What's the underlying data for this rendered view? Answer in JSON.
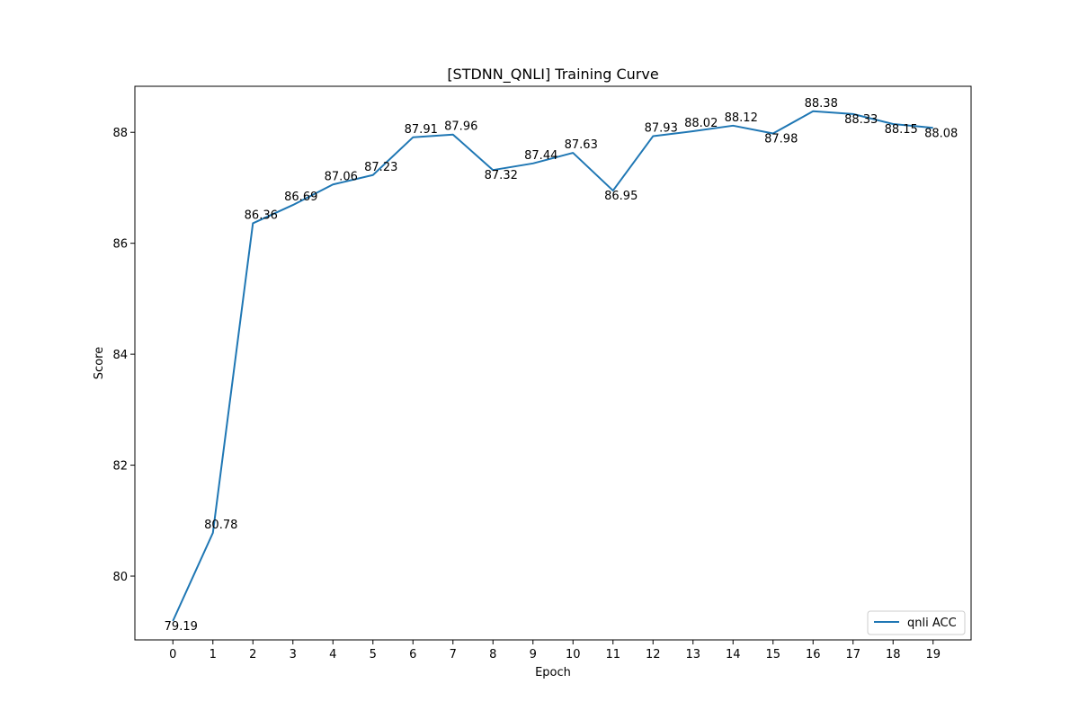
{
  "chart_data": {
    "type": "line",
    "title": "[STDNN_QNLI] Training Curve",
    "xlabel": "Epoch",
    "ylabel": "Score",
    "x": [
      0,
      1,
      2,
      3,
      4,
      5,
      6,
      7,
      8,
      9,
      10,
      11,
      12,
      13,
      14,
      15,
      16,
      17,
      18,
      19
    ],
    "x_ticks": [
      "0",
      "1",
      "2",
      "3",
      "4",
      "5",
      "6",
      "7",
      "8",
      "9",
      "10",
      "11",
      "12",
      "13",
      "14",
      "15",
      "16",
      "17",
      "18",
      "19"
    ],
    "y_ticks": [
      "80",
      "82",
      "84",
      "86",
      "88"
    ],
    "y_tick_values": [
      80,
      82,
      84,
      86,
      88
    ],
    "xlim": [
      -0.95,
      19.95
    ],
    "ylim": [
      78.85,
      88.83
    ],
    "grid": false,
    "legend_position": "lower-right",
    "series": [
      {
        "name": "qnli ACC",
        "color": "#1f77b4",
        "values": [
          79.19,
          80.78,
          86.36,
          86.69,
          87.06,
          87.23,
          87.91,
          87.96,
          87.32,
          87.44,
          87.63,
          86.95,
          87.93,
          88.02,
          88.12,
          87.98,
          88.38,
          88.33,
          88.15,
          88.08
        ],
        "data_labels": [
          "79.19",
          "80.78",
          "86.36",
          "86.69",
          "87.06",
          "87.23",
          "87.91",
          "87.96",
          "87.32",
          "87.44",
          "87.63",
          "86.95",
          "87.93",
          "88.02",
          "88.12",
          "87.98",
          "88.38",
          "88.33",
          "88.15",
          "88.08"
        ]
      }
    ]
  }
}
